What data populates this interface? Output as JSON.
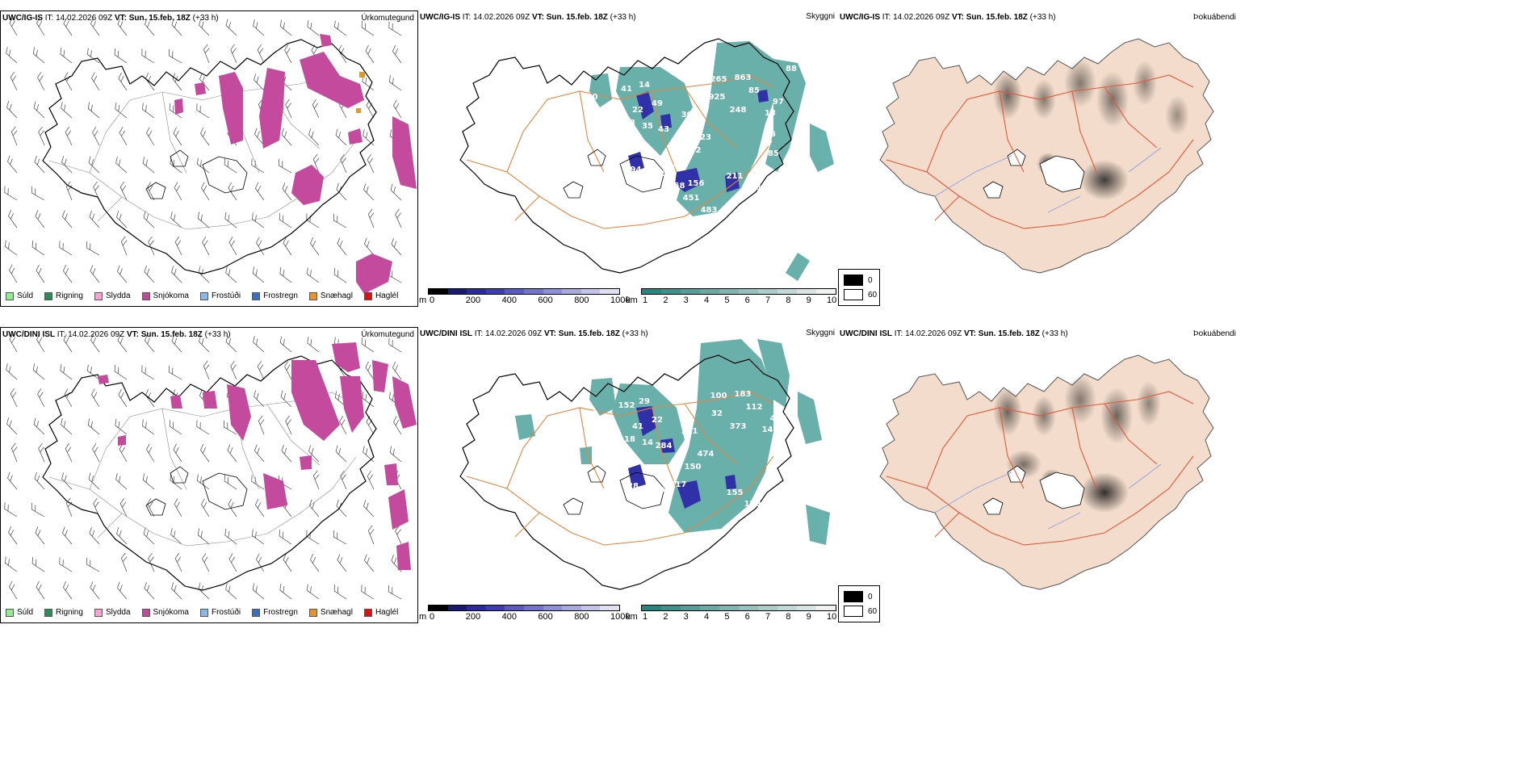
{
  "rows": [
    {
      "model": "UWC/IG-IS",
      "it_label": "IT:",
      "it_value": "14.02.2026 09Z",
      "vt_label": "VT:",
      "vt_value": "Sun. 15.feb. 18Z",
      "lead": "(+33 h)",
      "panels": {
        "precip": "Úrkomutegund",
        "cloud": "Skyggni",
        "fog": "Þokuábendi"
      },
      "cloud_labels": [
        "100",
        "41",
        "14",
        "49",
        "22",
        "43",
        "35",
        "33",
        "304",
        "23",
        "265",
        "863",
        "925",
        "85",
        "248",
        "97",
        "13",
        "192",
        "466",
        "211",
        "178",
        "494",
        "21",
        "158",
        "156",
        "451",
        "483",
        "85",
        "57",
        "85",
        "88"
      ]
    },
    {
      "model": "UWC/DINI ISL",
      "it_label": "IT:",
      "it_value": "14.02.2026 09Z",
      "vt_label": "VT:",
      "vt_value": "Sun. 15.feb. 18Z",
      "lead": "(+33 h)",
      "panels": {
        "precip": "Úrkomutegund",
        "cloud": "Skyggni",
        "fog": "Þokuábendi"
      },
      "cloud_labels": [
        "390",
        "152",
        "29",
        "22",
        "41",
        "284",
        "14",
        "18",
        "311",
        "474",
        "100",
        "183",
        "32",
        "112",
        "373",
        "499",
        "141",
        "150",
        "217",
        "155",
        "179",
        "28",
        "104"
      ]
    }
  ],
  "precip_legend": [
    {
      "label": "Súld",
      "color": "#90ee90"
    },
    {
      "label": "Rigning",
      "color": "#2e8b57"
    },
    {
      "label": "Slydda",
      "color": "#f4a6d0"
    },
    {
      "label": "Snjókoma",
      "color": "#c44a9e"
    },
    {
      "label": "Frostúði",
      "color": "#87b9ea"
    },
    {
      "label": "Frostregn",
      "color": "#3a6fc4"
    },
    {
      "label": "Snæhagl",
      "color": "#e8952a"
    },
    {
      "label": "Haglél",
      "color": "#e01010"
    }
  ],
  "ceiling_bar": {
    "unit": "m",
    "ticks": [
      "0",
      "200",
      "400",
      "600",
      "800",
      "1000"
    ],
    "colors": [
      "#000000",
      "#1a1a6e",
      "#2b2b9a",
      "#3e3eb0",
      "#5a5ac0",
      "#7474cc",
      "#8f8fd6",
      "#a9a9e0",
      "#c4c4ea",
      "#e0e0f5"
    ]
  },
  "visibility_bar": {
    "unit": "km",
    "ticks": [
      "1",
      "2",
      "3",
      "4",
      "5",
      "6",
      "7",
      "8",
      "9",
      "10"
    ],
    "colors": [
      "#2a8580",
      "#3f918c",
      "#559d98",
      "#6ba9a4",
      "#81b5b0",
      "#97c1bd",
      "#adcdc9",
      "#c3d9d6",
      "#d9e5e3",
      "#eef2f1"
    ]
  },
  "fog_legend": [
    {
      "label": "0",
      "color": "#000000"
    },
    {
      "label": "60",
      "color": "#ffffff"
    }
  ]
}
